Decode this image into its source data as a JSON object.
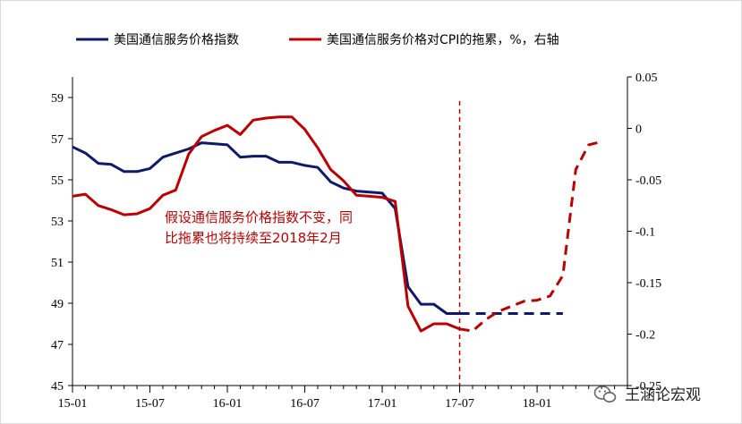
{
  "chart_data": {
    "type": "line",
    "legend_position": "top",
    "grid": false,
    "x_ticks": [
      "15-01",
      "15-07",
      "16-01",
      "16-07",
      "17-01",
      "17-07",
      "18-01"
    ],
    "left_axis": {
      "ticks": [
        "45",
        "47",
        "49",
        "51",
        "53",
        "55",
        "57",
        "59"
      ],
      "ylim": [
        45,
        60
      ]
    },
    "right_axis": {
      "ticks": [
        "0.05",
        "0",
        "-0.05",
        "-0.1",
        "-0.15",
        "-0.2",
        "-0.25"
      ],
      "ylim": [
        -0.25,
        0.05
      ]
    },
    "series": [
      {
        "name": "美国通信服务价格指数",
        "axis": "left",
        "color": "#0d1a6b",
        "x": [
          "2015-01",
          "2015-02",
          "2015-03",
          "2015-04",
          "2015-05",
          "2015-06",
          "2015-07",
          "2015-08",
          "2015-09",
          "2015-10",
          "2015-11",
          "2015-12",
          "2016-01",
          "2016-02",
          "2016-03",
          "2016-04",
          "2016-05",
          "2016-06",
          "2016-07",
          "2016-08",
          "2016-09",
          "2016-10",
          "2016-11",
          "2016-12",
          "2017-01",
          "2017-02",
          "2017-03",
          "2017-04",
          "2017-05",
          "2017-06",
          "2017-07"
        ],
        "y": [
          56.6,
          56.3,
          55.8,
          55.75,
          55.4,
          55.4,
          55.55,
          56.1,
          56.3,
          56.5,
          56.8,
          56.75,
          56.7,
          56.1,
          56.15,
          56.15,
          55.85,
          55.85,
          55.7,
          55.6,
          54.9,
          54.6,
          54.45,
          54.4,
          54.35,
          53.6,
          49.8,
          48.95,
          48.95,
          48.5,
          48.5
        ],
        "forecast": {
          "x": [
            "2017-07",
            "2018-03"
          ],
          "y": [
            48.5,
            48.5
          ]
        }
      },
      {
        "name": "美国通信服务价格对CPI的拖累，%，右轴",
        "axis": "right",
        "color": "#c00000",
        "x": [
          "2015-01",
          "2015-02",
          "2015-03",
          "2015-04",
          "2015-05",
          "2015-06",
          "2015-07",
          "2015-08",
          "2015-09",
          "2015-10",
          "2015-11",
          "2015-12",
          "2016-01",
          "2016-02",
          "2016-03",
          "2016-04",
          "2016-05",
          "2016-06",
          "2016-07",
          "2016-08",
          "2016-09",
          "2016-10",
          "2016-11",
          "2016-12",
          "2017-01",
          "2017-02",
          "2017-03",
          "2017-04",
          "2017-05",
          "2017-06",
          "2017-07"
        ],
        "y": [
          -0.066,
          -0.064,
          -0.075,
          -0.079,
          -0.084,
          -0.083,
          -0.078,
          -0.065,
          -0.06,
          -0.025,
          -0.008,
          -0.002,
          0.003,
          -0.006,
          0.008,
          0.01,
          0.011,
          0.011,
          -0.001,
          -0.019,
          -0.04,
          -0.051,
          -0.065,
          -0.066,
          -0.067,
          -0.071,
          -0.173,
          -0.197,
          -0.19,
          -0.19,
          -0.195
        ],
        "forecast": {
          "x": [
            "2017-07",
            "2017-08",
            "2017-09",
            "2017-10",
            "2017-11",
            "2017-12",
            "2018-01",
            "2018-02",
            "2018-03",
            "2018-04",
            "2018-05",
            "2018-06"
          ],
          "y": [
            -0.195,
            -0.197,
            -0.186,
            -0.178,
            -0.173,
            -0.168,
            -0.167,
            -0.163,
            -0.143,
            -0.04,
            -0.016,
            -0.013
          ]
        }
      }
    ],
    "annotations": [
      {
        "text_lines": [
          "假设通信服务价格指数不变，同",
          "比拖累也将持续至2018年2月"
        ],
        "color": "#c00000"
      }
    ],
    "vertical_marker": {
      "x": "2017-07",
      "color": "#c00000",
      "style": "dashed"
    }
  },
  "watermark": {
    "text": "王涵论宏观",
    "icon": "wechat-icon"
  }
}
